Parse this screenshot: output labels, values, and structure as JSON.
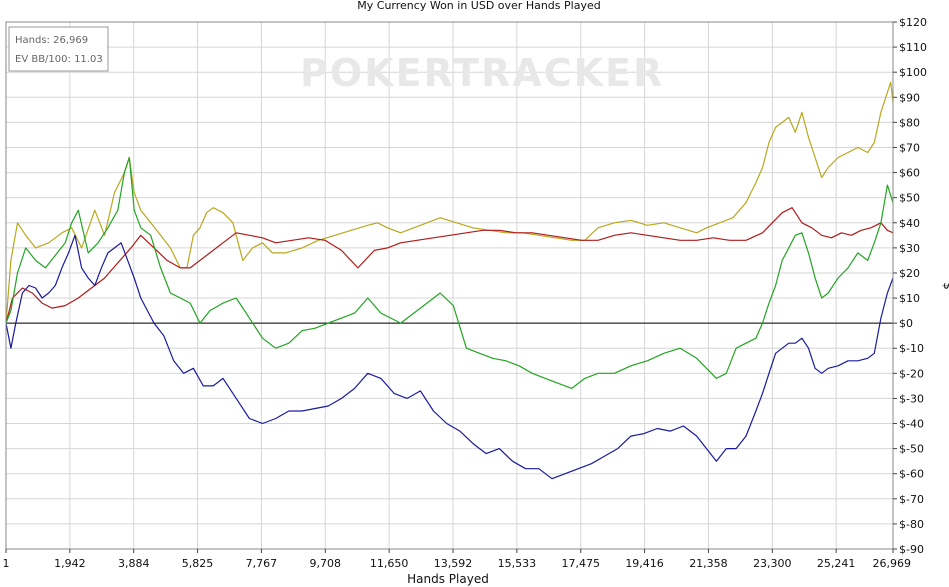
{
  "chart_data": {
    "type": "line",
    "title": "My Currency Won in USD over Hands Played",
    "xlabel": "Hands Played",
    "ylabel": "$",
    "xlim": [
      1,
      26969
    ],
    "ylim": [
      -90,
      120
    ],
    "x_ticks": [
      1,
      1942,
      3884,
      5825,
      7767,
      9708,
      11650,
      13592,
      15533,
      17475,
      19416,
      21358,
      23300,
      25241,
      26969
    ],
    "x_tick_labels": [
      "1",
      "1,942",
      "3,884",
      "5,825",
      "7,767",
      "9,708",
      "11,650",
      "13,592",
      "15,533",
      "17,475",
      "19,416",
      "21,358",
      "23,300",
      "25,241",
      "26,969"
    ],
    "y_ticks": [
      120,
      110,
      100,
      90,
      80,
      70,
      60,
      50,
      40,
      30,
      20,
      10,
      0,
      -10,
      -20,
      -30,
      -40,
      -50,
      -60,
      -70,
      -80,
      -90
    ],
    "y_tick_labels": [
      "$120",
      "$110",
      "$100",
      "$90",
      "$80",
      "$70",
      "$60",
      "$50",
      "$40",
      "$30",
      "$20",
      "$10",
      "$0",
      "$-10",
      "$-20",
      "$-30",
      "$-40",
      "$-50",
      "$-60",
      "$-70",
      "$-80",
      "$-90"
    ],
    "y_axis_side": "right",
    "grid": true,
    "zero_line": true,
    "info_box": {
      "hands_label": "Hands: 26,969",
      "ev_label": "EV BB/100: 11.03"
    },
    "watermark": "POKERTRACKER",
    "series": [
      {
        "color": "#b8a81e",
        "x": [
          1,
          150,
          350,
          600,
          900,
          1300,
          1700,
          2000,
          2300,
          2700,
          3000,
          3300,
          3600,
          3750,
          3900,
          4100,
          4400,
          4700,
          5000,
          5300,
          5500,
          5700,
          5900,
          6100,
          6300,
          6600,
          6900,
          7200,
          7500,
          7800,
          8100,
          8500,
          9000,
          9500,
          10000,
          10500,
          11000,
          11300,
          11600,
          12000,
          12400,
          12800,
          13200,
          13700,
          14200,
          14700,
          15200,
          15700,
          16200,
          16700,
          17200,
          17600,
          18000,
          18500,
          19000,
          19500,
          20000,
          20500,
          21000,
          21300,
          21700,
          22100,
          22500,
          22800,
          23000,
          23200,
          23400,
          23600,
          23800,
          24000,
          24200,
          24400,
          24600,
          24800,
          25000,
          25300,
          25600,
          25900,
          26200,
          26400,
          26600,
          26750,
          26900,
          26969
        ],
        "y": [
          0,
          25,
          40,
          35,
          30,
          32,
          36,
          38,
          30,
          45,
          35,
          52,
          60,
          66,
          52,
          45,
          40,
          35,
          30,
          22,
          22,
          35,
          38,
          44,
          46,
          44,
          40,
          25,
          30,
          32,
          28,
          28,
          30,
          33,
          35,
          37,
          39,
          40,
          38,
          36,
          38,
          40,
          42,
          40,
          38,
          37,
          36,
          36,
          35,
          34,
          33,
          33,
          38,
          40,
          41,
          39,
          40,
          38,
          36,
          38,
          40,
          42,
          48,
          56,
          62,
          72,
          78,
          80,
          82,
          76,
          84,
          74,
          66,
          58,
          62,
          66,
          68,
          70,
          68,
          72,
          84,
          90,
          96,
          88
        ]
      },
      {
        "color": "#b11a1a",
        "x": [
          1,
          200,
          500,
          800,
          1100,
          1400,
          1800,
          2200,
          2600,
          3000,
          3400,
          3800,
          4100,
          4500,
          4900,
          5300,
          5600,
          5900,
          6200,
          6600,
          7000,
          7400,
          7800,
          8200,
          8700,
          9200,
          9700,
          10200,
          10700,
          11200,
          11600,
          12000,
          12500,
          13000,
          13500,
          14000,
          14500,
          15000,
          15500,
          16000,
          16500,
          17000,
          17500,
          18000,
          18500,
          19000,
          19500,
          20000,
          20500,
          21000,
          21500,
          22000,
          22500,
          23000,
          23300,
          23600,
          23900,
          24200,
          24500,
          24800,
          25100,
          25400,
          25700,
          26000,
          26300,
          26600,
          26800,
          26969
        ],
        "y": [
          0,
          10,
          14,
          12,
          8,
          6,
          7,
          10,
          14,
          18,
          24,
          30,
          35,
          30,
          25,
          22,
          22,
          25,
          28,
          32,
          36,
          35,
          34,
          32,
          33,
          34,
          33,
          29,
          22,
          29,
          30,
          32,
          33,
          34,
          35,
          36,
          37,
          37,
          36,
          36,
          35,
          34,
          33,
          33,
          35,
          36,
          35,
          34,
          33,
          33,
          34,
          33,
          33,
          36,
          40,
          44,
          46,
          40,
          38,
          35,
          34,
          36,
          35,
          37,
          38,
          40,
          37,
          36
        ]
      },
      {
        "color": "#22a522",
        "x": [
          1,
          150,
          350,
          600,
          900,
          1200,
          1500,
          1800,
          2000,
          2200,
          2500,
          2800,
          3100,
          3400,
          3600,
          3750,
          3900,
          4100,
          4400,
          4700,
          5000,
          5300,
          5600,
          5900,
          6200,
          6600,
          7000,
          7400,
          7800,
          8200,
          8600,
          9000,
          9400,
          9800,
          10200,
          10600,
          11000,
          11400,
          11700,
          12000,
          12400,
          12800,
          13200,
          13600,
          14000,
          14400,
          14800,
          15200,
          15600,
          16000,
          16400,
          16800,
          17200,
          17600,
          18000,
          18500,
          19000,
          19500,
          20000,
          20500,
          21000,
          21300,
          21600,
          21900,
          22200,
          22500,
          22800,
          23000,
          23200,
          23400,
          23600,
          23800,
          24000,
          24200,
          24400,
          24600,
          24800,
          25000,
          25300,
          25600,
          25900,
          26200,
          26400,
          26600,
          26800,
          26969
        ],
        "y": [
          0,
          5,
          20,
          30,
          25,
          22,
          27,
          32,
          40,
          45,
          28,
          32,
          38,
          45,
          60,
          66,
          45,
          38,
          35,
          22,
          12,
          10,
          8,
          0,
          5,
          8,
          10,
          2,
          -6,
          -10,
          -8,
          -3,
          -2,
          0,
          2,
          4,
          10,
          4,
          2,
          0,
          4,
          8,
          12,
          7,
          -10,
          -12,
          -14,
          -15,
          -17,
          -20,
          -22,
          -24,
          -26,
          -22,
          -20,
          -20,
          -17,
          -15,
          -12,
          -10,
          -14,
          -18,
          -22,
          -20,
          -10,
          -8,
          -6,
          0,
          8,
          15,
          25,
          30,
          35,
          36,
          28,
          18,
          10,
          12,
          18,
          22,
          28,
          25,
          32,
          40,
          55,
          48
        ]
      },
      {
        "color": "#1a1aa0",
        "x": [
          1,
          150,
          300,
          500,
          700,
          900,
          1100,
          1300,
          1500,
          1700,
          1900,
          2100,
          2300,
          2500,
          2700,
          2900,
          3100,
          3300,
          3500,
          3700,
          3900,
          4100,
          4300,
          4500,
          4800,
          5100,
          5400,
          5700,
          6000,
          6300,
          6600,
          7000,
          7400,
          7800,
          8200,
          8600,
          9000,
          9400,
          9800,
          10200,
          10600,
          11000,
          11400,
          11800,
          12200,
          12600,
          13000,
          13400,
          13800,
          14200,
          14600,
          15000,
          15400,
          15800,
          16200,
          16600,
          17000,
          17400,
          17800,
          18200,
          18600,
          19000,
          19400,
          19800,
          20200,
          20600,
          21000,
          21300,
          21600,
          21900,
          22200,
          22500,
          22800,
          23000,
          23200,
          23400,
          23600,
          23800,
          24000,
          24200,
          24400,
          24600,
          24800,
          25000,
          25300,
          25600,
          25900,
          26200,
          26400,
          26600,
          26800,
          26969
        ],
        "y": [
          0,
          -10,
          0,
          12,
          15,
          14,
          10,
          12,
          15,
          22,
          28,
          35,
          22,
          18,
          15,
          22,
          28,
          30,
          32,
          25,
          18,
          10,
          5,
          0,
          -5,
          -15,
          -20,
          -18,
          -25,
          -25,
          -22,
          -30,
          -38,
          -40,
          -38,
          -35,
          -35,
          -34,
          -33,
          -30,
          -26,
          -20,
          -22,
          -28,
          -30,
          -27,
          -35,
          -40,
          -43,
          -48,
          -52,
          -50,
          -55,
          -58,
          -58,
          -62,
          -60,
          -58,
          -56,
          -53,
          -50,
          -45,
          -44,
          -42,
          -43,
          -41,
          -45,
          -50,
          -55,
          -50,
          -50,
          -45,
          -35,
          -28,
          -20,
          -12,
          -10,
          -8,
          -8,
          -6,
          -10,
          -18,
          -20,
          -18,
          -17,
          -15,
          -15,
          -14,
          -12,
          2,
          12,
          18
        ]
      }
    ]
  }
}
